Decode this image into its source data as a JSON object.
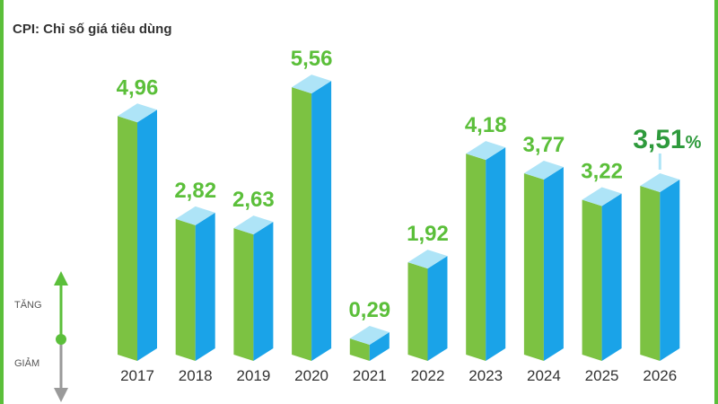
{
  "colors": {
    "green": "#7cc242",
    "blue": "#1aa3e8",
    "top": "#aee4f7",
    "label_green": "#5bbf3a",
    "label_dark_green": "#2e9a3c",
    "axis_gray": "#9a9a9a"
  },
  "chart_data": {
    "type": "bar",
    "title": "CPI: Chỉ số giá tiêu dùng",
    "categories": [
      "2017",
      "2018",
      "2019",
      "2020",
      "2021",
      "2022",
      "2023",
      "2024",
      "2025",
      "2026"
    ],
    "values": [
      4.96,
      2.82,
      2.63,
      5.56,
      0.29,
      1.92,
      4.18,
      3.77,
      3.22,
      3.51
    ],
    "labels": [
      "4,96",
      "2,82",
      "2,63",
      "5,56",
      "0,29",
      "1,92",
      "4,18",
      "3,77",
      "3,22",
      "3,51"
    ],
    "highlight_suffix": "%",
    "ylim": [
      0,
      5.6
    ],
    "legend": {
      "up": "TĂNG",
      "down": "GIẢM"
    }
  }
}
